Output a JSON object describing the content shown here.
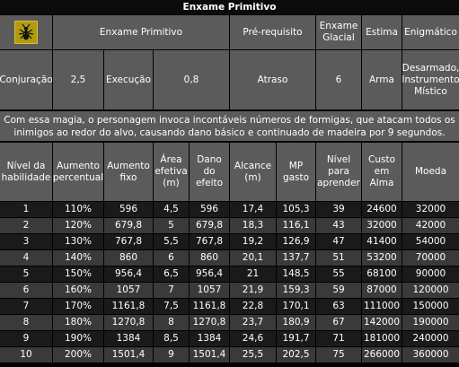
{
  "title": "Enxame Primitivo",
  "icon": "ant-skill-icon",
  "header": {
    "skill_name": "Enxame Primitivo",
    "prerequisite": "Pré-requisito",
    "glacial": "Enxame Glacial",
    "stance": "Estima",
    "enigmatic": "Enigmático"
  },
  "stats": {
    "casting_label": "Conjuração",
    "casting_value": "2,5",
    "execution_label": "Execução",
    "execution_value": "0,8",
    "prerequisite_value": "Atraso",
    "glacial_value": "6",
    "stance_value": "Arma",
    "enigmatic_value": "Desarmado, Instrumento Místico"
  },
  "description": "Com essa magia, o personagem invoca incontáveis números de formigas, que atacam todos os inimigos ao redor do alvo, causando dano básico e continuado de madeira por 9 segundos.",
  "table": {
    "headers": [
      "Nível da habilidade",
      "Aumento percentual",
      "Aumento fixo",
      "Área efetiva (m)",
      "Dano do efeito",
      "Alcance (m)",
      "MP gasto",
      "Nível para aprender",
      "Custo em Alma",
      "Moeda"
    ],
    "rows": [
      [
        "1",
        "110%",
        "596",
        "4,5",
        "596",
        "17,4",
        "105,3",
        "39",
        "24600",
        "32000"
      ],
      [
        "2",
        "120%",
        "679,8",
        "5",
        "679,8",
        "18,3",
        "116,1",
        "43",
        "32000",
        "42000"
      ],
      [
        "3",
        "130%",
        "767,8",
        "5,5",
        "767,8",
        "19,2",
        "126,9",
        "47",
        "41400",
        "54000"
      ],
      [
        "4",
        "140%",
        "860",
        "6",
        "860",
        "20,1",
        "137,7",
        "51",
        "53200",
        "70000"
      ],
      [
        "5",
        "150%",
        "956,4",
        "6,5",
        "956,4",
        "21",
        "148,5",
        "55",
        "68100",
        "90000"
      ],
      [
        "6",
        "160%",
        "1057",
        "7",
        "1057",
        "21,9",
        "159,3",
        "59",
        "87000",
        "120000"
      ],
      [
        "7",
        "170%",
        "1161,8",
        "7,5",
        "1161,8",
        "22,8",
        "170,1",
        "63",
        "111000",
        "150000"
      ],
      [
        "8",
        "180%",
        "1270,8",
        "8",
        "1270,8",
        "23,7",
        "180,9",
        "67",
        "142000",
        "190000"
      ],
      [
        "9",
        "190%",
        "1384",
        "8,5",
        "1384",
        "24,6",
        "191,7",
        "71",
        "181000",
        "240000"
      ],
      [
        "10",
        "200%",
        "1501,4",
        "9",
        "1501,4",
        "25,5",
        "202,5",
        "75",
        "266000",
        "360000"
      ]
    ]
  }
}
